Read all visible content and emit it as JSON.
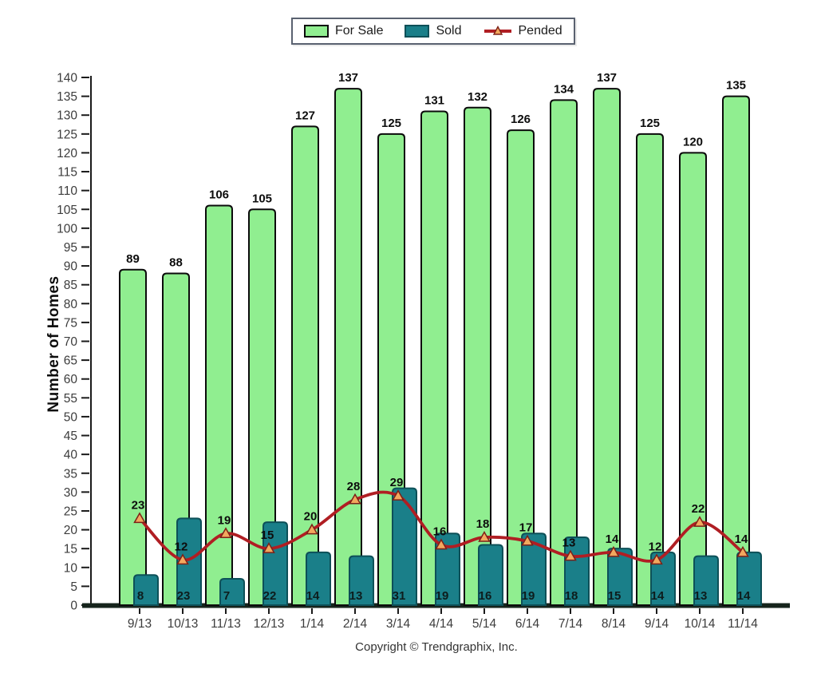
{
  "legend": {
    "position": "top-center"
  },
  "footer": {
    "copyright": "Copyright © Trendgraphix, Inc."
  },
  "chart_data": {
    "type": "bar",
    "title": "",
    "xlabel": "",
    "ylabel": "Number of Homes",
    "ylim": [
      0,
      140
    ],
    "ytick_step": 5,
    "grid": false,
    "legend_position": "top-center",
    "categories": [
      "9/13",
      "10/13",
      "11/13",
      "12/13",
      "1/14",
      "2/14",
      "3/14",
      "4/14",
      "5/14",
      "6/14",
      "7/14",
      "8/14",
      "9/14",
      "10/14",
      "11/14"
    ],
    "series": [
      {
        "name": "For Sale",
        "type": "bar",
        "color": "#90EE90",
        "border_color": "#0b0b0b",
        "label_position": "above-bar",
        "values": [
          89,
          88,
          106,
          105,
          127,
          137,
          125,
          131,
          132,
          126,
          134,
          137,
          125,
          120,
          135
        ]
      },
      {
        "name": "Sold",
        "type": "bar",
        "color": "#1A7F89",
        "border_color": "#0d5058",
        "label_position": "bar-bottom",
        "values": [
          8,
          23,
          7,
          22,
          14,
          13,
          31,
          19,
          16,
          19,
          18,
          15,
          14,
          13,
          14
        ]
      },
      {
        "name": "Pended",
        "type": "line",
        "color": "#B01E23",
        "marker": "triangle-up",
        "marker_fill": "#F2A85E",
        "marker_stroke": "#7D2017",
        "label_position": "above-marker",
        "values": [
          23,
          12,
          19,
          15,
          20,
          28,
          29,
          16,
          18,
          17,
          13,
          14,
          12,
          22,
          14
        ]
      }
    ],
    "axis_color": "#1a1a1a",
    "baseline_color": "#16241c",
    "tick_label_color": "#3c3c3c",
    "value_label_color": "#0d0d0d"
  }
}
